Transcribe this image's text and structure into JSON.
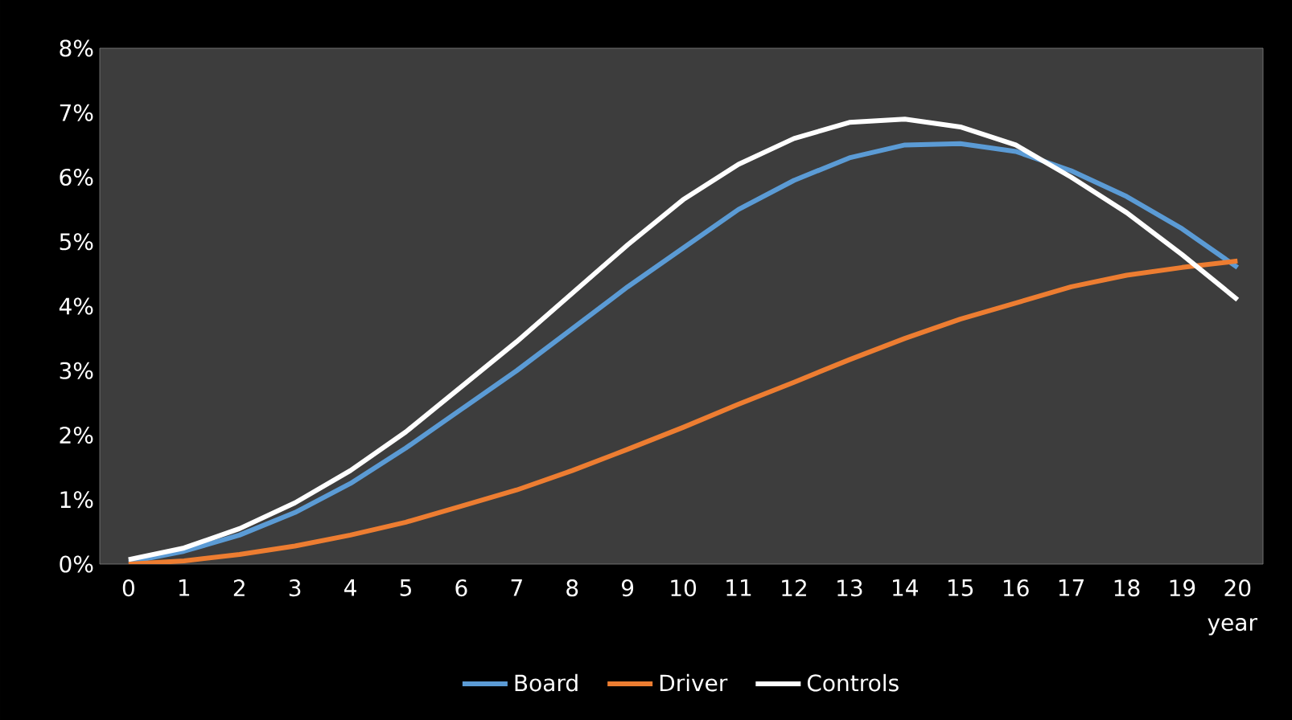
{
  "chart_data": {
    "type": "line",
    "xlabel": "year",
    "categories": [
      "0",
      "1",
      "2",
      "3",
      "4",
      "5",
      "6",
      "7",
      "8",
      "9",
      "10",
      "11",
      "12",
      "13",
      "14",
      "15",
      "16",
      "17",
      "18",
      "19",
      "20"
    ],
    "series": [
      {
        "name": "Board",
        "color": "#5b9bd5",
        "values": [
          0.03,
          0.2,
          0.45,
          0.8,
          1.25,
          1.8,
          2.4,
          3.0,
          3.65,
          4.3,
          4.9,
          5.5,
          5.95,
          6.3,
          6.5,
          6.52,
          6.4,
          6.1,
          5.7,
          5.2,
          4.6
        ]
      },
      {
        "name": "Driver",
        "color": "#ed7d31",
        "values": [
          0.0,
          0.05,
          0.15,
          0.28,
          0.45,
          0.65,
          0.9,
          1.15,
          1.45,
          1.78,
          2.12,
          2.48,
          2.82,
          3.17,
          3.5,
          3.8,
          4.05,
          4.3,
          4.48,
          4.6,
          4.7
        ]
      },
      {
        "name": "Controls",
        "color": "#ffffff",
        "values": [
          0.07,
          0.25,
          0.55,
          0.95,
          1.45,
          2.05,
          2.75,
          3.45,
          4.2,
          4.95,
          5.65,
          6.2,
          6.6,
          6.85,
          6.9,
          6.78,
          6.5,
          6.0,
          5.45,
          4.8,
          4.1
        ]
      }
    ],
    "ylim": [
      0,
      8
    ],
    "yticks": [
      {
        "value": 0,
        "label": "0%"
      },
      {
        "value": 1,
        "label": "1%"
      },
      {
        "value": 2,
        "label": "2%"
      },
      {
        "value": 3,
        "label": "3%"
      },
      {
        "value": 4,
        "label": "4%"
      },
      {
        "value": 5,
        "label": "5%"
      },
      {
        "value": 6,
        "label": "6%"
      },
      {
        "value": 7,
        "label": "7%"
      },
      {
        "value": 8,
        "label": "8%"
      }
    ],
    "grid": false,
    "legend": "bottom",
    "marker": "none",
    "line_style": "solid"
  }
}
